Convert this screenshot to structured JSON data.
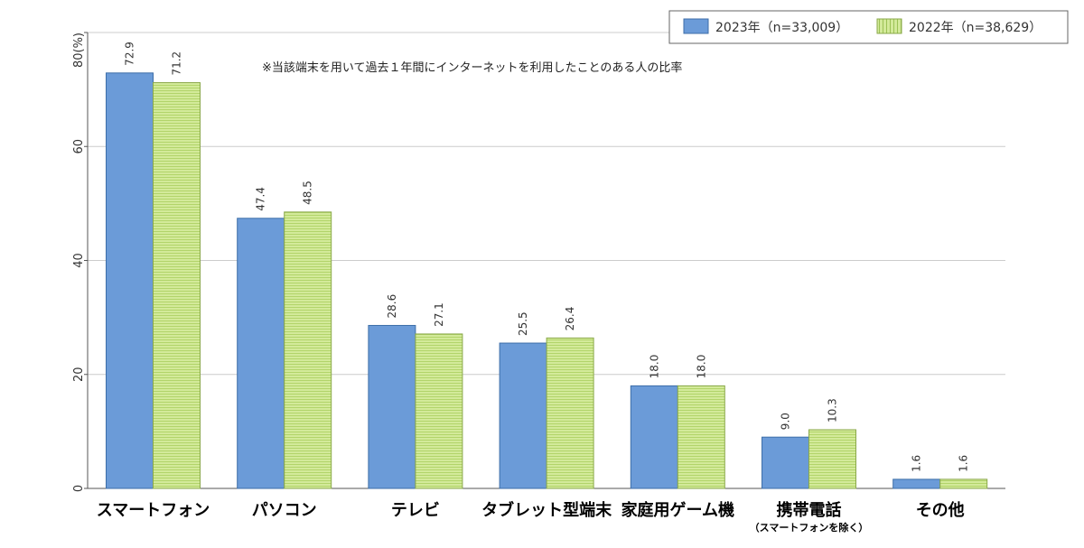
{
  "chart_data": {
    "type": "bar",
    "categories": [
      "スマートフォン",
      "パソコン",
      "テレビ",
      "タブレット型端末",
      "家庭用ゲーム機",
      "携帯電話",
      "その他"
    ],
    "category_notes": [
      "",
      "",
      "",
      "",
      "",
      "（スマートフォンを除く）",
      ""
    ],
    "series": [
      {
        "name": "2023年（n=33,009）",
        "values": [
          72.9,
          47.4,
          28.6,
          25.5,
          18.0,
          9.0,
          1.6
        ]
      },
      {
        "name": "2022年（n=38,629）",
        "values": [
          71.2,
          48.5,
          27.1,
          26.4,
          18.0,
          10.3,
          1.6
        ]
      }
    ],
    "value_labels": [
      [
        "72.9",
        "47.4",
        "28.6",
        "25.5",
        "18.0",
        "9.0",
        "1.6"
      ],
      [
        "71.2",
        "48.5",
        "27.1",
        "26.4",
        "18.0",
        "10.3",
        "1.6"
      ]
    ],
    "ylim": [
      0,
      80
    ],
    "yticks": [
      "0",
      "20",
      "40",
      "60",
      "80(%)"
    ],
    "annotation": "※当該端末を用いて過去１年間にインターネットを利用したことのある人の比率",
    "grid": true,
    "legend_position": "top-right",
    "colors": {
      "series_2023_fill": "#6b9bd8",
      "series_2023_stroke": "#3d6ea8",
      "series_2022_fill": "#d3ea9a",
      "series_2022_stripe": "#b2d46a",
      "series_2022_stroke": "#8aa84a",
      "grid": "#cccccc",
      "axis": "#555555"
    }
  }
}
